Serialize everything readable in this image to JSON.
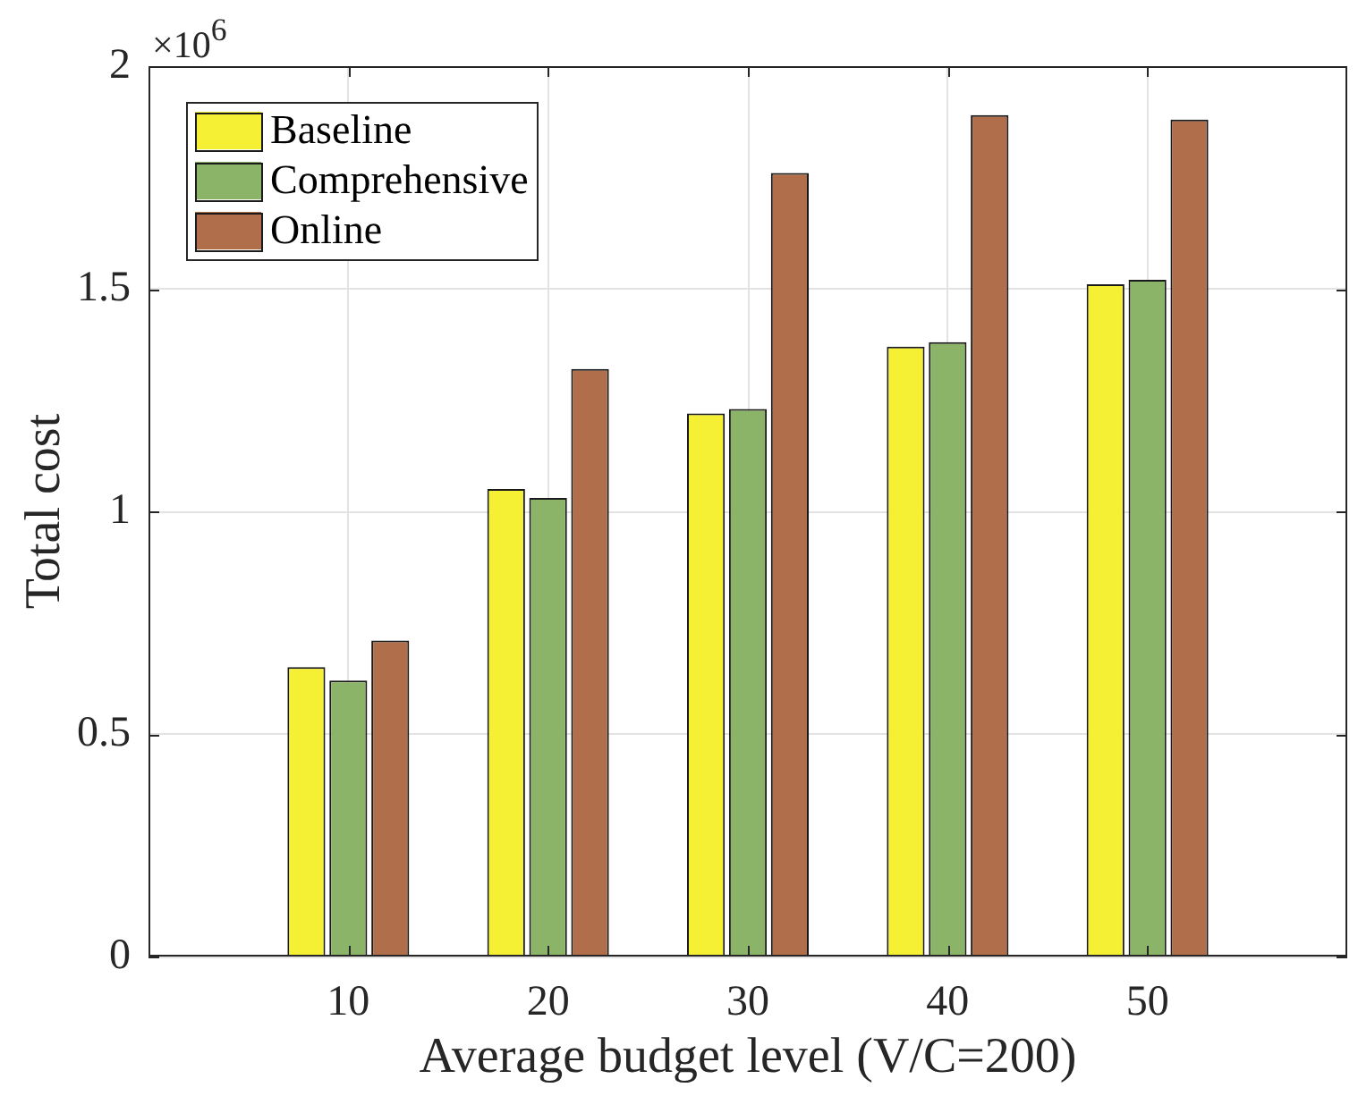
{
  "chart_data": {
    "type": "bar",
    "xlabel": "Average budget level (V/C=200)",
    "ylabel": "Total cost",
    "annotations": [
      "×10$^{6}$"
    ],
    "x": [
      10,
      20,
      30,
      40,
      50
    ],
    "xlim": [
      0,
      60
    ],
    "xticks": [
      10,
      20,
      30,
      40,
      50
    ],
    "ylim": [
      0,
      2
    ],
    "yticks": [
      0,
      0.5,
      1,
      1.5,
      2
    ],
    "grid": true,
    "legend": "top left",
    "series": [
      {
        "name": "Baseline",
        "color": "#f5f033",
        "values": [
          0.65,
          1.05,
          1.22,
          1.37,
          1.51
        ]
      },
      {
        "name": "Comprehensive",
        "color": "#8cb468",
        "values": [
          0.62,
          1.03,
          1.23,
          1.38,
          1.52
        ]
      },
      {
        "name": "Online",
        "color": "#b06e4a",
        "values": [
          0.71,
          1.32,
          1.76,
          1.89,
          1.88
        ]
      }
    ]
  }
}
